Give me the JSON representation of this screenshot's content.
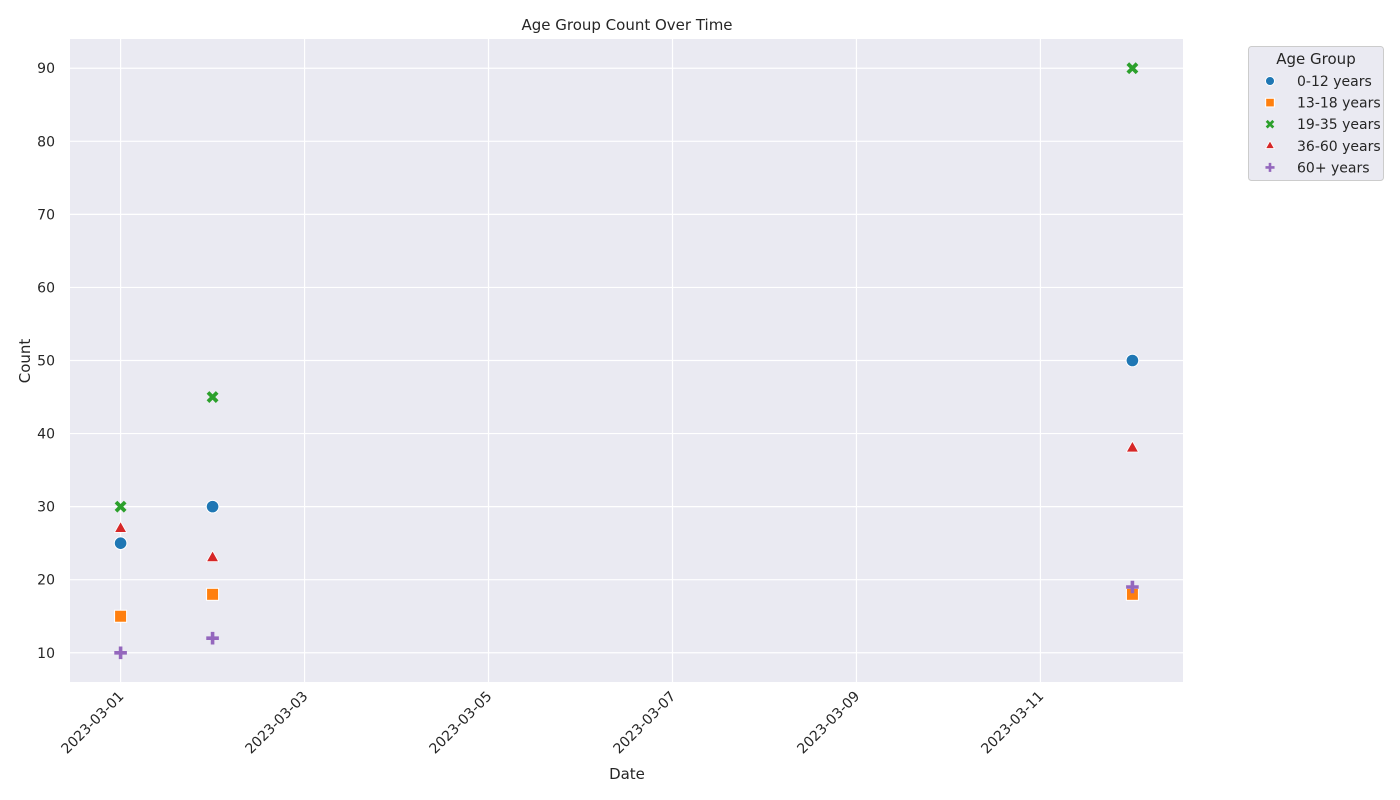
{
  "chart_data": {
    "type": "scatter",
    "title": "Age Group Count Over Time",
    "xlabel": "Date",
    "ylabel": "Count",
    "x_ticks": [
      "2023-03-01",
      "2023-03-03",
      "2023-03-05",
      "2023-03-07",
      "2023-03-09",
      "2023-03-11"
    ],
    "y_ticks": [
      10,
      20,
      30,
      40,
      50,
      60,
      70,
      80,
      90
    ],
    "xlim": [
      "2023-02-28",
      "2023-03-12"
    ],
    "ylim": [
      6,
      94
    ],
    "grid": true,
    "legend": {
      "title": "Age Group",
      "placement": "outside-top-right"
    },
    "series": [
      {
        "name": "0-12 years",
        "marker": "circle",
        "color": "#1f77b4",
        "points": [
          {
            "x": "2023-03-01",
            "y": 25
          },
          {
            "x": "2023-03-02",
            "y": 30
          },
          {
            "x": "2023-03-12",
            "y": 50
          }
        ]
      },
      {
        "name": "13-18 years",
        "marker": "square",
        "color": "#ff7f0e",
        "points": [
          {
            "x": "2023-03-01",
            "y": 15
          },
          {
            "x": "2023-03-02",
            "y": 18
          },
          {
            "x": "2023-03-12",
            "y": 18
          }
        ]
      },
      {
        "name": "19-35 years",
        "marker": "x",
        "color": "#2ca02c",
        "points": [
          {
            "x": "2023-03-01",
            "y": 30
          },
          {
            "x": "2023-03-02",
            "y": 45
          },
          {
            "x": "2023-03-12",
            "y": 90
          }
        ]
      },
      {
        "name": "36-60 years",
        "marker": "triangle",
        "color": "#d62728",
        "points": [
          {
            "x": "2023-03-01",
            "y": 27
          },
          {
            "x": "2023-03-02",
            "y": 23
          },
          {
            "x": "2023-03-12",
            "y": 38
          }
        ]
      },
      {
        "name": "60+ years",
        "marker": "plus",
        "color": "#9467bd",
        "points": [
          {
            "x": "2023-03-01",
            "y": 10
          },
          {
            "x": "2023-03-02",
            "y": 12
          },
          {
            "x": "2023-03-12",
            "y": 19
          }
        ]
      }
    ]
  },
  "colors": {
    "plot_background": "#eaeaf2",
    "grid": "#ffffff"
  }
}
